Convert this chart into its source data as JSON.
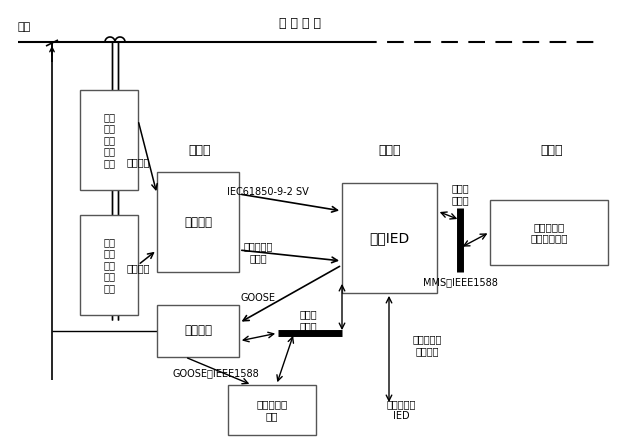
{
  "bg_color": "#ffffff",
  "text_color": "#000000",
  "box_edge": "#555555",
  "line_color": "#000000",
  "title_top": "输 电 线 路",
  "label_busbar": "母线",
  "label_process": "过程层",
  "label_bay": "间隔层",
  "label_station": "站控层",
  "label_ct": "光学\n电子\n式电\n流互\n感器",
  "label_vt": "光学\n电子\n式电\n压互\n感器",
  "label_merge": "合并单元",
  "label_ied": "本侧IED",
  "label_smart": "智能终端",
  "label_other": "其它间隔层\n设备",
  "label_monitor": "监控系统、\n时间同步系统",
  "label_3phase_current": "三相电流",
  "label_3phase_voltage": "三相电压",
  "label_iec_sv": "IEC61850-9-2 SV",
  "label_p2p_fiber": "点对点光纤\n以太网",
  "label_goose1": "GOOSE",
  "label_switch_eth1": "交换式\n以太网",
  "label_goose_ieee": "GOOSE、IEEE1588",
  "label_switch_eth2": "交换式\n以太网",
  "label_mms": "MMS、IEEE1588",
  "label_comm": "通信设备和\n通信通道",
  "label_to_line": "至线路对侧\nIED"
}
